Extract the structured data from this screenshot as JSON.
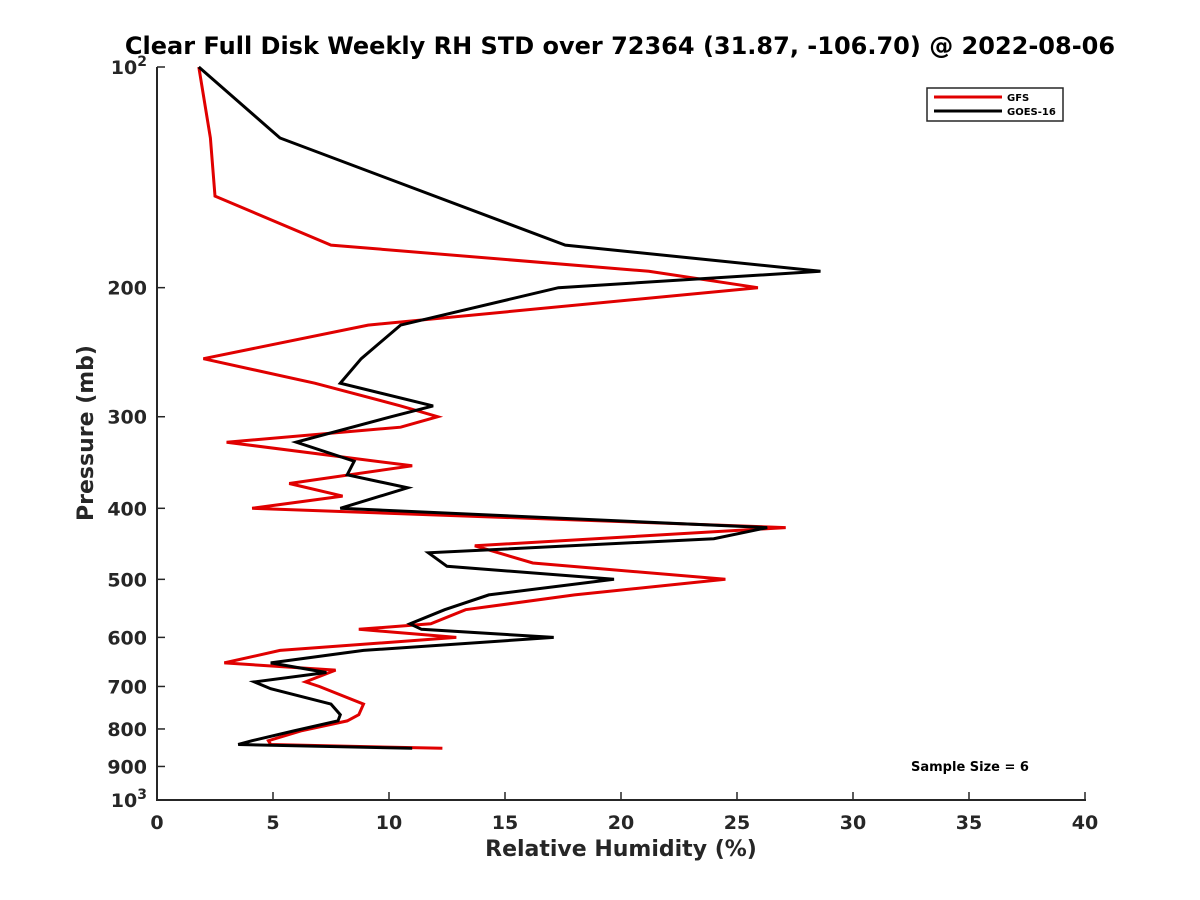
{
  "chart_data": {
    "type": "line",
    "title": "Clear Full Disk Weekly RH STD over 72364 (31.87, -106.70) @ 2022-08-06",
    "xlabel": "Relative Humidity (%)",
    "ylabel": "Pressure (mb)",
    "xlim": [
      0,
      40
    ],
    "ylim": [
      100,
      1000
    ],
    "y_scale": "log",
    "y_reversed": true,
    "grid": false,
    "legend_position": "top-right",
    "x_ticks": [
      0,
      5,
      10,
      15,
      20,
      25,
      30,
      35,
      40
    ],
    "x_tick_labels": [
      "0",
      "5",
      "10",
      "15",
      "20",
      "25",
      "30",
      "35",
      "40"
    ],
    "y_ticks": [
      100,
      200,
      300,
      400,
      500,
      600,
      700,
      800,
      900,
      1000
    ],
    "y_tick_labels": [
      {
        "base": "10",
        "exp": "2"
      },
      {
        "base": "200",
        "exp": ""
      },
      {
        "base": "300",
        "exp": ""
      },
      {
        "base": "400",
        "exp": ""
      },
      {
        "base": "500",
        "exp": ""
      },
      {
        "base": "600",
        "exp": ""
      },
      {
        "base": "700",
        "exp": ""
      },
      {
        "base": "800",
        "exp": ""
      },
      {
        "base": "900",
        "exp": ""
      },
      {
        "base": "10",
        "exp": "3"
      }
    ],
    "series": [
      {
        "name": "GFS",
        "color": "#e00000",
        "points": [
          [
            1.8,
            100
          ],
          [
            2.3,
            125
          ],
          [
            2.5,
            150
          ],
          [
            7.5,
            175
          ],
          [
            21.2,
            190
          ],
          [
            25.9,
            200
          ],
          [
            9.1,
            225
          ],
          [
            2.0,
            250
          ],
          [
            6.8,
            270
          ],
          [
            10.5,
            290
          ],
          [
            12.1,
            300
          ],
          [
            10.5,
            310
          ],
          [
            3.0,
            325
          ],
          [
            11.0,
            350
          ],
          [
            5.7,
            370
          ],
          [
            8.0,
            385
          ],
          [
            4.1,
            400
          ],
          [
            27.1,
            425
          ],
          [
            13.7,
            450
          ],
          [
            16.2,
            475
          ],
          [
            24.5,
            500
          ],
          [
            18.0,
            525
          ],
          [
            13.3,
            550
          ],
          [
            11.8,
            575
          ],
          [
            8.7,
            585
          ],
          [
            12.9,
            600
          ],
          [
            5.3,
            625
          ],
          [
            2.9,
            650
          ],
          [
            7.7,
            665
          ],
          [
            6.4,
            690
          ],
          [
            7.0,
            700
          ],
          [
            8.9,
            740
          ],
          [
            8.7,
            765
          ],
          [
            8.2,
            780
          ],
          [
            6.2,
            805
          ],
          [
            4.8,
            830
          ],
          [
            4.9,
            840
          ],
          [
            12.3,
            850
          ]
        ]
      },
      {
        "name": "GOES-16",
        "color": "#000000",
        "points": [
          [
            1.8,
            100
          ],
          [
            5.3,
            125
          ],
          [
            17.6,
            175
          ],
          [
            28.6,
            190
          ],
          [
            17.3,
            200
          ],
          [
            10.5,
            225
          ],
          [
            8.8,
            250
          ],
          [
            7.9,
            270
          ],
          [
            11.9,
            290
          ],
          [
            10.1,
            300
          ],
          [
            6.0,
            325
          ],
          [
            8.5,
            345
          ],
          [
            8.2,
            360
          ],
          [
            10.8,
            375
          ],
          [
            7.9,
            400
          ],
          [
            26.3,
            425
          ],
          [
            24.0,
            440
          ],
          [
            11.7,
            460
          ],
          [
            12.5,
            480
          ],
          [
            19.7,
            500
          ],
          [
            14.3,
            525
          ],
          [
            12.4,
            550
          ],
          [
            10.9,
            575
          ],
          [
            11.4,
            585
          ],
          [
            17.1,
            600
          ],
          [
            8.9,
            625
          ],
          [
            4.9,
            650
          ],
          [
            7.3,
            670
          ],
          [
            4.2,
            690
          ],
          [
            4.9,
            705
          ],
          [
            7.5,
            740
          ],
          [
            7.9,
            765
          ],
          [
            7.8,
            780
          ],
          [
            5.9,
            805
          ],
          [
            4.1,
            830
          ],
          [
            3.5,
            840
          ],
          [
            11.0,
            850
          ]
        ]
      }
    ],
    "annotation": "Sample Size = 6"
  }
}
